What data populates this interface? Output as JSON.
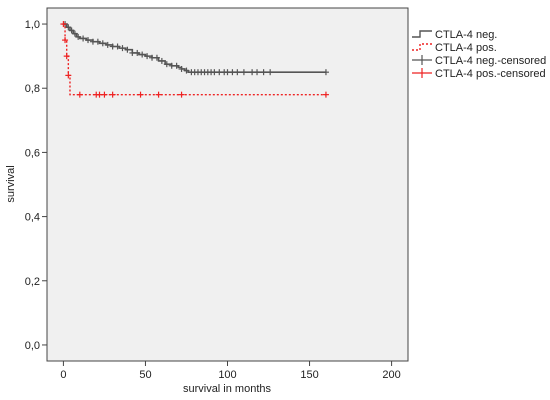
{
  "chart_data": {
    "type": "line",
    "title": "",
    "xlabel": "survival in months",
    "ylabel": "survival",
    "xlim": [
      -10,
      210
    ],
    "ylim": [
      -0.05,
      1.05
    ],
    "x_ticks": [
      0,
      50,
      100,
      150,
      200
    ],
    "x_tick_labels": [
      "0",
      "50",
      "100",
      "150",
      "200"
    ],
    "y_ticks": [
      0.0,
      0.2,
      0.4,
      0.6,
      0.8,
      1.0
    ],
    "y_tick_labels": [
      "0,0",
      "0,2",
      "0,4",
      "0,6",
      "0,8",
      "1,0"
    ],
    "grid": false,
    "legend_position": "right",
    "colors": {
      "plot_bg": "#f0f0f0",
      "neg": "#555555",
      "pos": "#ee2222"
    },
    "series": [
      {
        "name": "CTLA-4 neg.",
        "style": "solid-step",
        "color": "#555555",
        "points": [
          [
            0,
            1.0
          ],
          [
            2,
            0.99
          ],
          [
            4,
            0.98
          ],
          [
            6,
            0.97
          ],
          [
            8,
            0.96
          ],
          [
            10,
            0.955
          ],
          [
            14,
            0.95
          ],
          [
            18,
            0.945
          ],
          [
            22,
            0.94
          ],
          [
            26,
            0.935
          ],
          [
            30,
            0.93
          ],
          [
            34,
            0.925
          ],
          [
            38,
            0.92
          ],
          [
            42,
            0.91
          ],
          [
            46,
            0.905
          ],
          [
            50,
            0.9
          ],
          [
            54,
            0.895
          ],
          [
            58,
            0.885
          ],
          [
            62,
            0.875
          ],
          [
            66,
            0.87
          ],
          [
            70,
            0.865
          ],
          [
            72,
            0.86
          ],
          [
            74,
            0.855
          ],
          [
            76,
            0.85
          ],
          [
            160,
            0.85
          ]
        ],
        "censored": [
          1,
          3,
          5,
          7,
          9,
          12,
          15,
          18,
          21,
          24,
          27,
          30,
          33,
          36,
          39,
          42,
          45,
          48,
          51,
          54,
          57,
          60,
          63,
          66,
          69,
          72,
          75,
          78,
          80,
          82,
          84,
          86,
          88,
          90,
          92,
          95,
          98,
          100,
          103,
          106,
          110,
          115,
          118,
          122,
          126,
          160
        ]
      },
      {
        "name": "CTLA-4 pos.",
        "style": "dotted-step",
        "color": "#ee2222",
        "points": [
          [
            0,
            1.0
          ],
          [
            1,
            0.95
          ],
          [
            2,
            0.9
          ],
          [
            3,
            0.84
          ],
          [
            4,
            0.78
          ],
          [
            160,
            0.78
          ]
        ],
        "censored": [
          0,
          1,
          2,
          3,
          10,
          20,
          22,
          25,
          30,
          47,
          58,
          72,
          160
        ]
      }
    ],
    "legend": [
      {
        "label": "CTLA-4 neg.",
        "kind": "line-solid",
        "color": "#555555"
      },
      {
        "label": "CTLA-4 pos.",
        "kind": "line-dotted",
        "color": "#ee2222"
      },
      {
        "label": "CTLA-4 neg.-censored",
        "kind": "plus",
        "color": "#555555"
      },
      {
        "label": "CTLA-4 pos.-censored",
        "kind": "plus",
        "color": "#ee2222"
      }
    ]
  }
}
